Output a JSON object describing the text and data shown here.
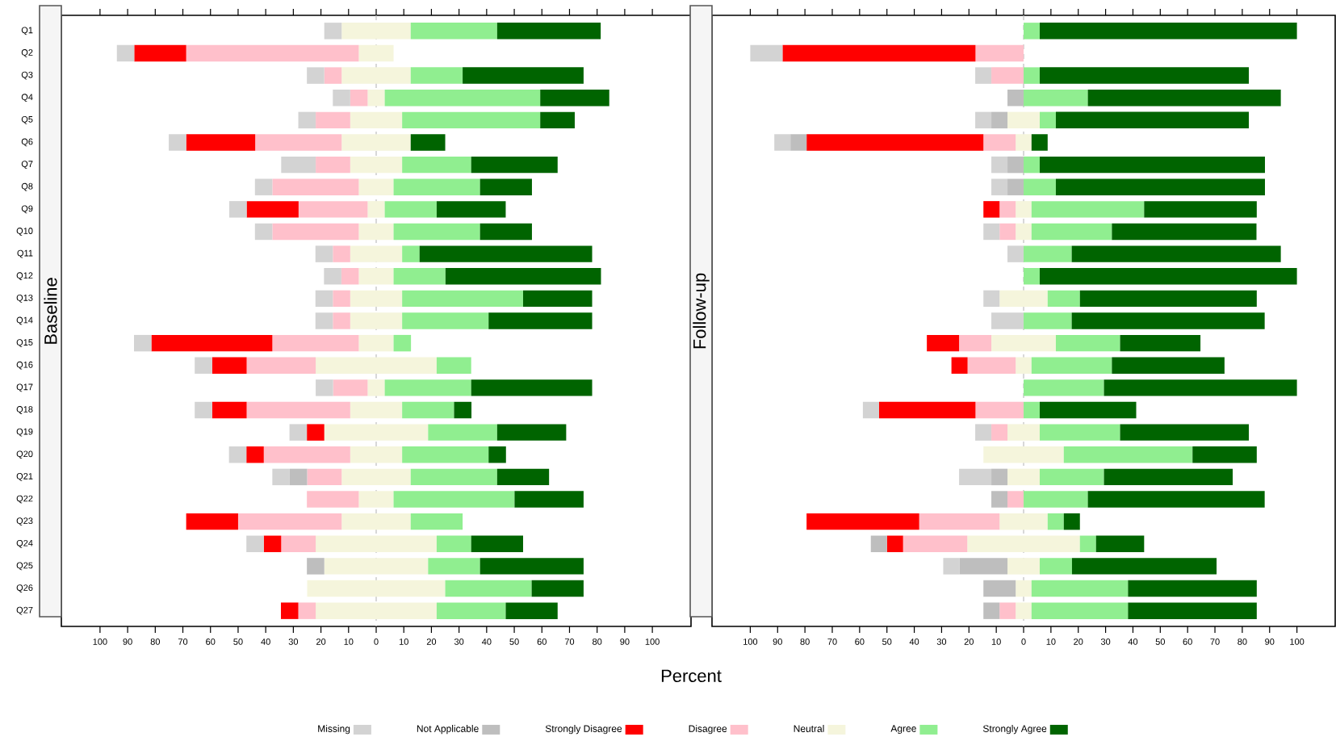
{
  "chart_data": [
    {
      "type": "bar",
      "orientation": "horizontal",
      "stacked": true,
      "title": "Baseline",
      "xlabel": "Percent",
      "legend": "bottom",
      "categories": [
        "Q1",
        "Q2",
        "Q3",
        "Q4",
        "Q5",
        "Q6",
        "Q7",
        "Q8",
        "Q9",
        "Q10",
        "Q11",
        "Q12",
        "Q13",
        "Q14",
        "Q15",
        "Q16",
        "Q17",
        "Q18",
        "Q19",
        "Q20",
        "Q21",
        "Q22",
        "Q23",
        "Q24",
        "Q25",
        "Q26",
        "Q27"
      ],
      "xlim": [
        -114,
        114
      ],
      "xticks": [
        {
          "value": -100,
          "label": "100"
        },
        {
          "value": -90,
          "label": "90"
        },
        {
          "value": -80,
          "label": "80"
        },
        {
          "value": -70,
          "label": "70"
        },
        {
          "value": -60,
          "label": "60"
        },
        {
          "value": -50,
          "label": "50"
        },
        {
          "value": -40,
          "label": "40"
        },
        {
          "value": -30,
          "label": "30"
        },
        {
          "value": -20,
          "label": "20"
        },
        {
          "value": -10,
          "label": "10"
        },
        0,
        10,
        20,
        30,
        40,
        50,
        60,
        70,
        80,
        90,
        100
      ],
      "ref_lines": [
        {
          "axis": "x",
          "value": 0,
          "color": "#bebebe",
          "line_style": "dashed"
        }
      ],
      "series": [
        {
          "name": "Neutral",
          "color": "#f5f5dc",
          "values": [
            -12.5,
            -6.3,
            -12.5,
            -3.1,
            -9.4,
            -12.5,
            -9.4,
            -6.3,
            -3.1,
            -6.3,
            -9.4,
            -6.3,
            -9.4,
            -9.4,
            -6.3,
            -21.9,
            -3.1,
            -9.4,
            -18.8,
            -9.4,
            -12.5,
            -6.3,
            -12.5,
            -21.9,
            -18.8,
            -25,
            -21.9
          ]
        },
        {
          "name": "Disagree",
          "color": "#ffc0cb",
          "values": [
            0,
            -62.5,
            -6.3,
            -6.3,
            -12.5,
            -31.3,
            -12.5,
            -31.3,
            -25,
            -31.3,
            -6.3,
            -6.3,
            -6.3,
            -6.3,
            -31.3,
            -25,
            -12.5,
            -37.5,
            0,
            -31.3,
            -12.5,
            -18.8,
            -37.5,
            -12.5,
            0,
            0,
            -6.3
          ]
        },
        {
          "name": "Strongly Disagree",
          "color": "#ff0000",
          "values": [
            0,
            -18.8,
            0,
            0,
            0,
            -25,
            0,
            0,
            -18.8,
            0,
            0,
            0,
            0,
            0,
            -43.8,
            -12.5,
            0,
            -12.5,
            -6.3,
            -6.3,
            0,
            0,
            -18.8,
            -6.3,
            0,
            0,
            -6.3
          ]
        },
        {
          "name": "Not Applicable",
          "color": "#bebebe",
          "values": [
            0,
            0,
            0,
            0,
            0,
            0,
            0,
            0,
            0,
            0,
            0,
            0,
            0,
            0,
            0,
            0,
            0,
            0,
            0,
            0,
            -6.3,
            0,
            0,
            0,
            -6.3,
            0,
            0
          ]
        },
        {
          "name": "Missing",
          "color": "#d3d3d3",
          "values": [
            -6.3,
            -6.3,
            -6.3,
            -6.3,
            -6.3,
            -6.3,
            -12.5,
            -6.3,
            -6.3,
            -6.3,
            -6.3,
            -6.3,
            -6.3,
            -6.3,
            -6.3,
            -6.3,
            -6.3,
            -6.3,
            -6.3,
            -6.3,
            -6.3,
            0,
            0,
            -6.3,
            0,
            0,
            0
          ]
        },
        {
          "color": "#f5f5dc",
          "values": [
            12.5,
            6.3,
            12.5,
            3.1,
            9.4,
            12.5,
            9.4,
            6.3,
            3.1,
            6.3,
            9.4,
            6.3,
            9.4,
            9.4,
            6.3,
            21.9,
            3.1,
            9.4,
            18.8,
            9.4,
            12.5,
            6.3,
            12.5,
            21.9,
            18.8,
            25,
            21.9
          ]
        },
        {
          "name": "Agree",
          "color": "#90ee90",
          "values": [
            31.3,
            0,
            18.8,
            56.3,
            50,
            0,
            25,
            31.3,
            18.8,
            31.3,
            6.3,
            18.8,
            43.8,
            31.3,
            6.3,
            12.5,
            31.3,
            18.8,
            25,
            31.3,
            31.3,
            43.8,
            18.8,
            12.5,
            18.8,
            31.3,
            25
          ]
        },
        {
          "name": "Strongly Agree",
          "color": "#006400",
          "values": [
            37.5,
            0,
            43.8,
            25,
            12.5,
            12.5,
            31.3,
            18.8,
            25,
            18.8,
            62.5,
            56.3,
            25,
            37.5,
            0,
            0,
            43.8,
            6.3,
            25,
            6.3,
            18.8,
            25,
            0,
            18.8,
            37.5,
            18.8,
            18.8
          ]
        }
      ]
    },
    {
      "type": "bar",
      "orientation": "horizontal",
      "stacked": true,
      "title": "Follow-up",
      "tick_labels": "x",
      "categories": [
        null,
        null,
        null,
        null,
        null,
        null,
        null,
        null,
        null,
        null,
        null,
        null,
        null,
        null,
        null,
        null,
        null,
        null,
        null,
        null,
        null,
        null,
        null,
        null,
        null,
        null,
        null
      ],
      "xlim": [
        -114,
        114
      ],
      "xticks": [
        {
          "value": -100,
          "label": "100"
        },
        {
          "value": -90,
          "label": "90"
        },
        {
          "value": -80,
          "label": "80"
        },
        {
          "value": -70,
          "label": "70"
        },
        {
          "value": -60,
          "label": "60"
        },
        {
          "value": -50,
          "label": "50"
        },
        {
          "value": -40,
          "label": "40"
        },
        {
          "value": -30,
          "label": "30"
        },
        {
          "value": -20,
          "label": "20"
        },
        {
          "value": -10,
          "label": "10"
        },
        0,
        10,
        20,
        30,
        40,
        50,
        60,
        70,
        80,
        90,
        100
      ],
      "ref_lines": [
        {
          "axis": "x",
          "value": 0,
          "color": "#bebebe",
          "line_style": "dashed"
        }
      ],
      "series": [
        {
          "color": "#f5f5dc",
          "values": [
            0,
            0,
            0,
            0,
            -5.9,
            -2.9,
            0,
            0,
            -2.9,
            -2.9,
            0,
            0,
            -8.8,
            0,
            -11.8,
            -2.9,
            0,
            0,
            -5.9,
            -14.7,
            -5.9,
            0,
            -8.8,
            -20.6,
            -5.9,
            -2.9,
            -2.9
          ]
        },
        {
          "color": "#ffc0cb",
          "values": [
            0,
            -17.6,
            -11.8,
            0,
            0,
            -11.8,
            0,
            0,
            -5.9,
            -5.9,
            0,
            0,
            0,
            0,
            -11.8,
            -17.6,
            0,
            -17.6,
            -5.9,
            0,
            0,
            -5.9,
            -29.4,
            -23.5,
            0,
            0,
            -5.9
          ]
        },
        {
          "color": "#ff0000",
          "values": [
            0,
            -70.6,
            0,
            0,
            0,
            -64.7,
            0,
            0,
            -5.9,
            0,
            0,
            0,
            0,
            0,
            -11.8,
            -5.9,
            0,
            -35.3,
            0,
            0,
            0,
            0,
            -41.2,
            -5.9,
            0,
            0,
            0
          ]
        },
        {
          "color": "#bebebe",
          "values": [
            0,
            0,
            0,
            -5.9,
            -5.9,
            -5.9,
            -5.9,
            -5.9,
            0,
            0,
            0,
            0,
            0,
            0,
            0,
            0,
            0,
            0,
            0,
            0,
            -5.9,
            -5.9,
            0,
            -5.9,
            -17.6,
            -11.8,
            -5.9
          ]
        },
        {
          "color": "#d3d3d3",
          "values": [
            0,
            -11.8,
            -5.9,
            0,
            -5.9,
            -5.9,
            -5.9,
            -5.9,
            0,
            -5.9,
            -5.9,
            0,
            -5.9,
            -11.8,
            0,
            0,
            0,
            -5.9,
            -5.9,
            0,
            -11.8,
            0,
            0,
            0,
            -5.9,
            0,
            0
          ]
        },
        {
          "color": "#f5f5dc",
          "values": [
            0,
            0,
            0,
            0,
            5.9,
            2.9,
            0,
            0,
            2.9,
            2.9,
            0,
            0,
            8.8,
            0,
            11.8,
            2.9,
            0,
            0,
            5.9,
            14.7,
            5.9,
            0,
            8.8,
            20.6,
            5.9,
            2.9,
            2.9
          ]
        },
        {
          "color": "#90ee90",
          "values": [
            5.9,
            0,
            5.9,
            23.5,
            5.9,
            0,
            5.9,
            11.8,
            41.2,
            29.4,
            17.6,
            5.9,
            11.8,
            17.6,
            23.5,
            29.4,
            29.4,
            5.9,
            29.4,
            47.1,
            23.5,
            23.5,
            5.9,
            5.9,
            11.8,
            35.3,
            35.3
          ]
        },
        {
          "color": "#006400",
          "values": [
            94.1,
            0,
            76.5,
            70.6,
            70.6,
            5.9,
            82.4,
            76.5,
            41.2,
            52.9,
            76.5,
            94.1,
            64.7,
            70.6,
            29.4,
            41.2,
            70.6,
            35.3,
            47.1,
            23.5,
            47.1,
            64.7,
            5.9,
            17.6,
            52.9,
            47.1,
            47.1
          ]
        }
      ]
    }
  ]
}
